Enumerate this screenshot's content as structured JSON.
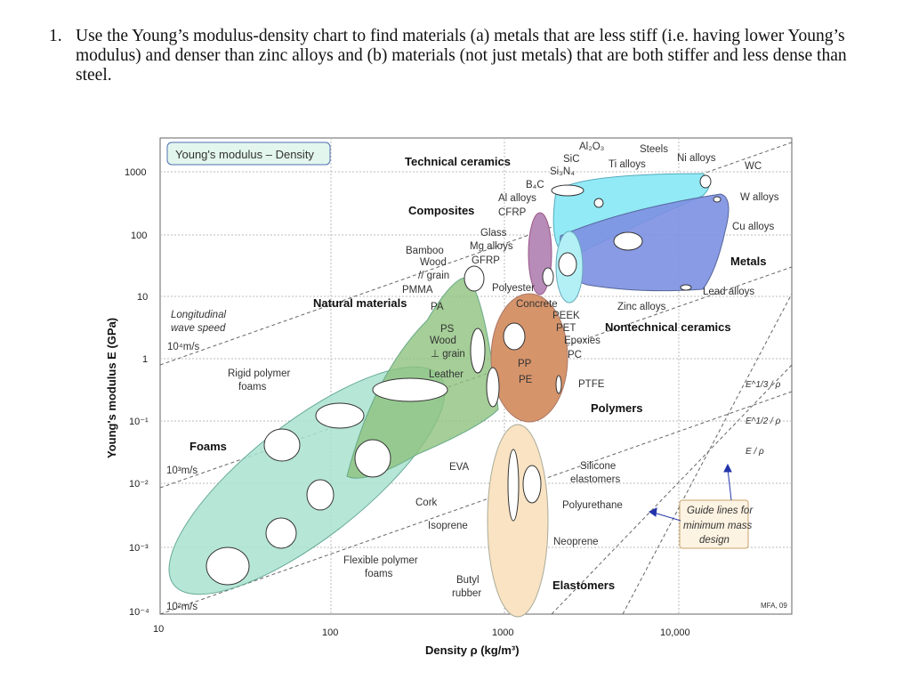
{
  "question": {
    "number": "1.",
    "text": "Use the Young’s modulus-density chart to find materials (a) metals that are less stiff (i.e. having lower Young’s modulus) and denser than zinc alloys and (b) materials (not just metals) that are both stiffer and less dense than steel."
  },
  "figure": {
    "title": "Young's modulus – Density",
    "xlabel": "Density ρ (kg/m³)",
    "ylabel": "Young's modulus E (GPa)",
    "xticks": [
      "10",
      "100",
      "1000",
      "10,000"
    ],
    "yticks": [
      "1000",
      "100",
      "10",
      "1",
      "10⁻¹",
      "10⁻²",
      "10⁻³",
      "10⁻⁴"
    ],
    "x_scale": "log",
    "y_scale": "log",
    "xlim": [
      10,
      50000
    ],
    "ylim": [
      0.0001,
      3000
    ],
    "credit": "MFA, 09",
    "families": [
      "Technical ceramics",
      "Composites",
      "Natural materials",
      "Metals",
      "Nontechnical ceramics",
      "Polymers",
      "Foams",
      "Elastomers"
    ],
    "family_colors": {
      "foams": "#a9e2cf",
      "natural": "#8fc27e",
      "polymers": "#d6946b",
      "elastomers": "#f9e3c2",
      "composites": "#b88cb8",
      "technical_ceramics": "#92eaf6",
      "metals": "#7d90e2",
      "nontechnical": "#b3f0f6"
    },
    "materials": [
      "Al₂O₃",
      "SiC",
      "Si₃N₄",
      "B₄C",
      "Steels",
      "Ti alloys",
      "Ni alloys",
      "WC",
      "W alloys",
      "Cu alloys",
      "Lead alloys",
      "Zinc alloys",
      "Al alloys",
      "CFRP",
      "Glass",
      "Mg alloys",
      "GFRP",
      "Bamboo",
      "Wood",
      "// grain",
      "PMMA",
      "PA",
      "PS",
      "Wood",
      "⊥ grain",
      "Leather",
      "Polyester",
      "Concrete",
      "PEEK",
      "PET",
      "Epoxies",
      "PC",
      "PP",
      "PE",
      "PTFE",
      "Rigid polymer",
      "foams",
      "Cork",
      "EVA",
      "Silicone",
      "elastomers",
      "Polyurethane",
      "Isoprene",
      "Neoprene",
      "Flexible polymer",
      "foams",
      "Butyl",
      "rubber"
    ],
    "wave_speed": {
      "label1": "Longitudinal",
      "label2": "wave speed",
      "v4": "10⁴m/s",
      "v3": "10³m/s",
      "v2": "10²m/s"
    },
    "guides": {
      "e13": "E^1/3 / ρ",
      "e12": "E^1/2 / ρ",
      "e1": "E / ρ",
      "box1": "Guide lines for",
      "box2": "minimum mass",
      "box3": "design"
    }
  }
}
